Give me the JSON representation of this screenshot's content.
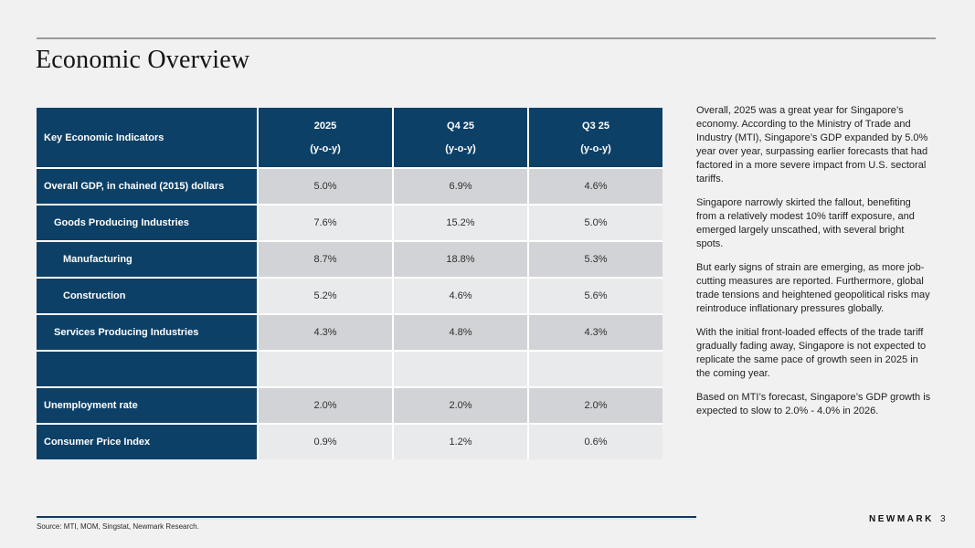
{
  "slide": {
    "title": "Economic Overview",
    "brand": "NEWMARK",
    "page_number": "3",
    "source": "Source: MTI, MOM, Singstat, Newmark Research."
  },
  "table": {
    "header": {
      "label": "Key Economic Indicators",
      "columns": [
        {
          "period": "2025",
          "unit": "(y-o-y)"
        },
        {
          "period": "Q4 25",
          "unit": "(y-o-y)"
        },
        {
          "period": "Q3 25",
          "unit": "(y-o-y)"
        }
      ]
    },
    "rows": [
      {
        "label": "Overall GDP, in chained (2015) dollars",
        "values": [
          "5.0%",
          "6.9%",
          "4.6%"
        ]
      },
      {
        "label": "Goods Producing Industries",
        "values": [
          "7.6%",
          "15.2%",
          "5.0%"
        ]
      },
      {
        "label": "Manufacturing",
        "values": [
          "8.7%",
          "18.8%",
          "5.3%"
        ]
      },
      {
        "label": "Construction",
        "values": [
          "5.2%",
          "4.6%",
          "5.6%"
        ]
      },
      {
        "label": "Services Producing Industries",
        "values": [
          "4.3%",
          "4.8%",
          "4.3%"
        ]
      },
      {
        "label": "",
        "values": [
          "",
          "",
          ""
        ]
      },
      {
        "label": "Unemployment rate",
        "values": [
          "2.0%",
          "2.0%",
          "2.0%"
        ]
      },
      {
        "label": "Consumer Price Index",
        "values": [
          "0.9%",
          "1.2%",
          "0.6%"
        ]
      }
    ]
  },
  "commentary": {
    "paragraphs": [
      "Overall, 2025 was a great year for Singapore’s economy. According to the Ministry of Trade and Industry (MTI), Singapore’s GDP expanded by 5.0% year over year, surpassing earlier forecasts that had factored in a more severe impact from U.S. sectoral tariffs.",
      "Singapore narrowly skirted the fallout, benefiting from a relatively modest 10% tariff exposure, and emerged largely unscathed, with several bright spots.",
      "But early signs of strain are emerging, as more job-cutting measures are reported. Furthermore, global trade tensions and heightened geopolitical risks may reintroduce inflationary pressures globally.",
      "With the initial front-loaded effects of the trade tariff gradually fading away, Singapore is not expected to replicate the same pace of growth seen in 2025 in the coming year.",
      "Based on MTI’s forecast, Singapore’s GDP growth is expected to slow to 2.0% - 4.0% in 2026."
    ]
  },
  "colors": {
    "navy": "#0d4067",
    "row_shade_dark": "#d2d3d6",
    "row_shade_light": "#e9eaec",
    "accent_line": "#17365d",
    "background": "#f1f1f2"
  }
}
